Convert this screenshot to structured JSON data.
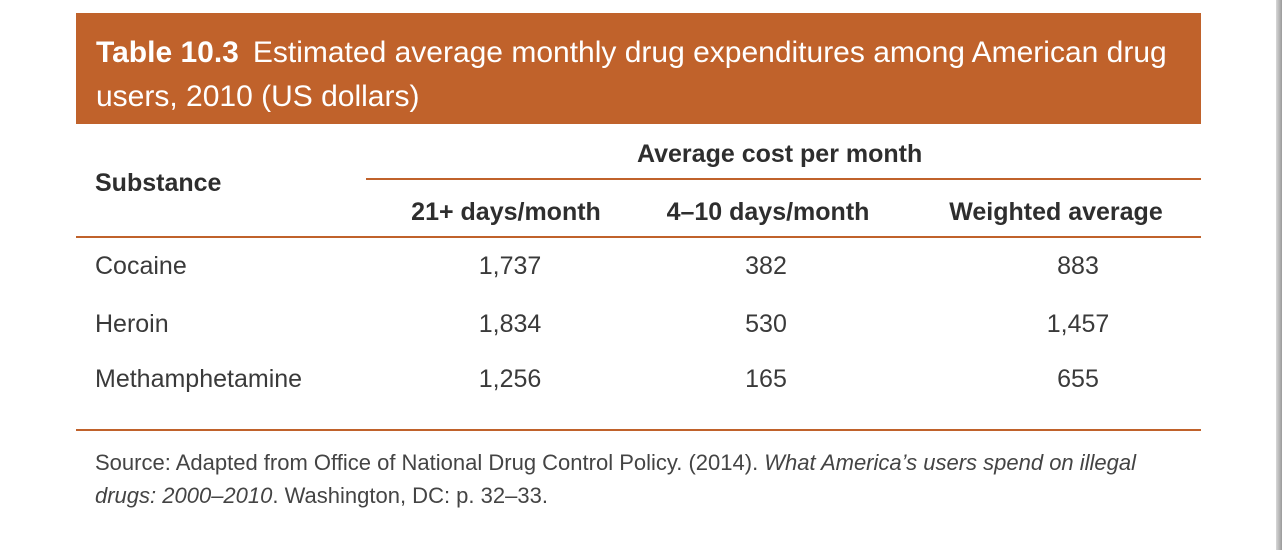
{
  "table": {
    "label": "Table 10.3",
    "title": "Estimated average monthly drug expenditures among American drug users, 2010 (US dollars)",
    "row_header": "Substance",
    "group_header": "Average cost per month",
    "columns": [
      "21+ days/month",
      "4–10 days/month",
      "Weighted average"
    ],
    "rows": [
      {
        "substance": "Cocaine",
        "values": [
          "1,737",
          "382",
          "883"
        ]
      },
      {
        "substance": "Heroin",
        "values": [
          "1,834",
          "530",
          "1,457"
        ]
      },
      {
        "substance": "Methamphetamine",
        "values": [
          "1,256",
          "165",
          "655"
        ]
      }
    ]
  },
  "source": {
    "prefix": "Source: Adapted from Office of National Drug Control Policy. (2014). ",
    "title_italic": "What America’s users spend on illegal drugs: 2000–2010",
    "suffix": ". Washington, DC: p. 32–33."
  },
  "colors": {
    "accent": "#c0622b",
    "title_text": "#ffffff",
    "body_text": "#3a3a3a"
  }
}
